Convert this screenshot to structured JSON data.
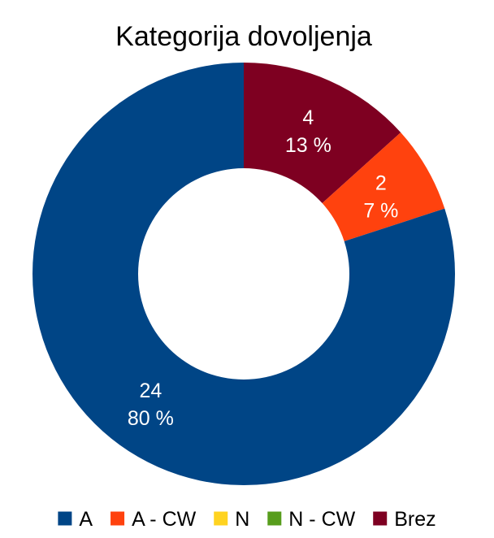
{
  "chart_data": {
    "type": "pie",
    "variant": "donut",
    "title": "Kategorija dovoljenja",
    "categories": [
      "A",
      "A - CW",
      "N",
      "N - CW",
      "Brez"
    ],
    "values": [
      24,
      2,
      0,
      0,
      4
    ],
    "value_labels": [
      "24",
      "2",
      "",
      "",
      "4"
    ],
    "percent_labels": [
      "80 %",
      "7 %",
      "",
      "",
      "13 %"
    ],
    "colors": [
      "#004586",
      "#ff420e",
      "#ffd320",
      "#579d1c",
      "#7e0021"
    ],
    "legend": {
      "position": "bottom",
      "entries": [
        "A",
        "A - CW",
        "N",
        "N - CW",
        "Brez"
      ]
    }
  }
}
